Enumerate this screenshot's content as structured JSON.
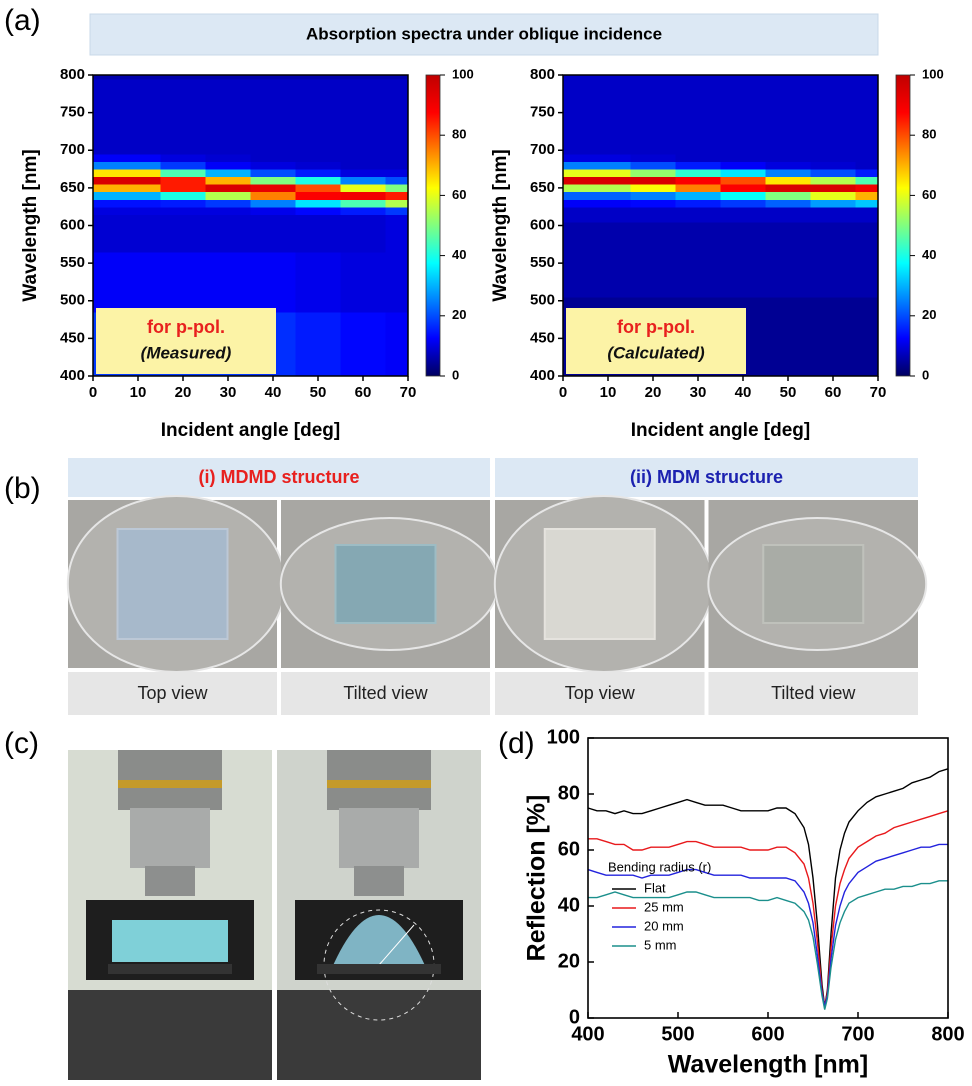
{
  "panel_labels": [
    "(a)",
    "(b)",
    "(c)",
    "(d)"
  ],
  "banner": "Absorption spectra under oblique incidence",
  "photos": {
    "groups": [
      {
        "title": "(i) MDMD structure",
        "color": "#e8201e",
        "views": [
          "Top view",
          "Tilted view"
        ]
      },
      {
        "title": "(ii) MDM structure",
        "color": "#1c22b0",
        "views": [
          "Top view",
          "Tilted view"
        ]
      }
    ]
  },
  "chart_data": [
    {
      "type": "heatmap",
      "xlabel": "Incident angle [deg]",
      "ylabel": "Wavelength [nm]",
      "annotation": [
        "for p-pol.",
        "(Measured)"
      ],
      "x": [
        0,
        10,
        20,
        30,
        40,
        50,
        60,
        70
      ],
      "y": [
        400,
        410,
        420,
        430,
        440,
        450,
        460,
        470,
        480,
        490,
        500,
        510,
        520,
        530,
        540,
        550,
        560,
        570,
        580,
        590,
        600,
        610,
        620,
        630,
        640,
        650,
        660,
        670,
        680,
        690,
        700,
        710,
        720,
        730,
        740,
        750,
        760,
        770,
        780,
        790,
        800
      ],
      "z": [
        [
          18,
          18,
          18,
          18,
          17,
          15,
          13,
          12
        ],
        [
          18,
          18,
          18,
          18,
          17,
          15,
          13,
          12
        ],
        [
          18,
          18,
          18,
          18,
          17,
          15,
          13,
          12
        ],
        [
          18,
          18,
          18,
          18,
          17,
          15,
          13,
          12
        ],
        [
          18,
          18,
          18,
          18,
          17,
          15,
          13,
          12
        ],
        [
          18,
          18,
          18,
          18,
          17,
          15,
          13,
          12
        ],
        [
          18,
          18,
          18,
          18,
          17,
          15,
          13,
          12
        ],
        [
          18,
          18,
          18,
          18,
          17,
          15,
          13,
          12
        ],
        [
          18,
          18,
          18,
          18,
          17,
          15,
          13,
          12
        ],
        [
          12,
          12,
          12,
          12,
          12,
          11,
          10,
          10
        ],
        [
          12,
          12,
          12,
          12,
          12,
          11,
          10,
          10
        ],
        [
          12,
          12,
          12,
          12,
          12,
          11,
          10,
          10
        ],
        [
          12,
          12,
          12,
          12,
          12,
          11,
          10,
          10
        ],
        [
          12,
          12,
          12,
          12,
          12,
          11,
          10,
          10
        ],
        [
          12,
          12,
          12,
          12,
          12,
          11,
          10,
          10
        ],
        [
          12,
          12,
          12,
          12,
          12,
          11,
          10,
          10
        ],
        [
          12,
          12,
          12,
          12,
          12,
          11,
          10,
          10
        ],
        [
          9,
          9,
          9,
          9,
          9,
          9,
          9,
          10
        ],
        [
          9,
          9,
          9,
          9,
          9,
          9,
          9,
          10
        ],
        [
          9,
          9,
          9,
          9,
          9,
          9,
          9,
          10
        ],
        [
          9,
          9,
          9,
          9,
          9,
          9,
          9,
          10
        ],
        [
          9,
          9,
          9,
          9,
          9,
          9,
          9,
          10
        ],
        [
          10,
          10,
          10,
          10,
          11,
          13,
          15,
          18
        ],
        [
          14,
          14,
          15,
          18,
          25,
          35,
          45,
          55
        ],
        [
          30,
          30,
          40,
          55,
          75,
          88,
          90,
          85
        ],
        [
          70,
          70,
          85,
          95,
          92,
          80,
          60,
          50
        ],
        [
          95,
          95,
          85,
          70,
          50,
          40,
          25,
          20
        ],
        [
          65,
          65,
          45,
          30,
          20,
          15,
          10,
          10
        ],
        [
          25,
          25,
          18,
          12,
          10,
          9,
          8,
          8
        ],
        [
          12,
          12,
          10,
          9,
          8,
          8,
          8,
          8
        ],
        [
          8,
          8,
          8,
          8,
          8,
          8,
          8,
          8
        ],
        [
          8,
          8,
          8,
          8,
          8,
          8,
          8,
          8
        ],
        [
          8,
          8,
          8,
          8,
          8,
          8,
          8,
          8
        ],
        [
          8,
          8,
          8,
          8,
          8,
          8,
          8,
          8
        ],
        [
          8,
          8,
          8,
          8,
          8,
          8,
          8,
          8
        ],
        [
          8,
          8,
          8,
          8,
          8,
          8,
          8,
          8
        ],
        [
          8,
          8,
          8,
          8,
          8,
          8,
          8,
          8
        ],
        [
          8,
          8,
          8,
          8,
          8,
          8,
          8,
          8
        ],
        [
          8,
          8,
          8,
          8,
          8,
          8,
          8,
          8
        ],
        [
          8,
          8,
          8,
          8,
          8,
          8,
          8,
          8
        ],
        [
          6,
          6,
          6,
          6,
          6,
          6,
          6,
          6
        ]
      ],
      "xlim": [
        0,
        70
      ],
      "xticks": [
        0,
        10,
        20,
        30,
        40,
        50,
        60,
        70
      ],
      "ylim": [
        400,
        800
      ],
      "yticks": [
        400,
        450,
        500,
        550,
        600,
        650,
        700,
        750,
        800
      ],
      "zlim": [
        0,
        100
      ],
      "zticks": [
        0,
        20,
        40,
        60,
        80,
        100
      ],
      "colormap": [
        "#000060",
        "#0000ff",
        "#0080ff",
        "#00ffff",
        "#80ff80",
        "#ffff00",
        "#ff8000",
        "#ff0000",
        "#c00000"
      ]
    },
    {
      "type": "heatmap",
      "xlabel": "Incident angle [deg]",
      "ylabel": "Wavelength [nm]",
      "annotation": [
        "for p-pol.",
        "(Calculated)"
      ],
      "x": [
        0,
        10,
        20,
        30,
        40,
        50,
        60,
        70
      ],
      "y": [
        400,
        410,
        420,
        430,
        440,
        450,
        460,
        470,
        480,
        490,
        500,
        510,
        520,
        530,
        540,
        550,
        560,
        570,
        580,
        590,
        600,
        610,
        620,
        630,
        640,
        650,
        660,
        670,
        680,
        690,
        700,
        710,
        720,
        730,
        740,
        750,
        760,
        770,
        780,
        790,
        800
      ],
      "z": [
        [
          4,
          4,
          4,
          4,
          4,
          4,
          4,
          4
        ],
        [
          4,
          4,
          4,
          4,
          4,
          4,
          4,
          4
        ],
        [
          4,
          4,
          4,
          4,
          4,
          4,
          4,
          4
        ],
        [
          4,
          4,
          4,
          4,
          4,
          4,
          4,
          4
        ],
        [
          4,
          4,
          4,
          4,
          4,
          4,
          4,
          4
        ],
        [
          4,
          4,
          4,
          4,
          4,
          4,
          4,
          4
        ],
        [
          4,
          4,
          4,
          4,
          4,
          4,
          4,
          4
        ],
        [
          4,
          4,
          4,
          4,
          4,
          4,
          4,
          4
        ],
        [
          4,
          4,
          4,
          4,
          4,
          4,
          4,
          4
        ],
        [
          4,
          4,
          4,
          4,
          4,
          4,
          4,
          4
        ],
        [
          4,
          4,
          4,
          4,
          4,
          4,
          4,
          4
        ],
        [
          6,
          6,
          6,
          6,
          6,
          6,
          6,
          6
        ],
        [
          6,
          6,
          6,
          6,
          6,
          6,
          6,
          6
        ],
        [
          6,
          6,
          6,
          6,
          6,
          6,
          6,
          6
        ],
        [
          6,
          6,
          6,
          6,
          6,
          6,
          6,
          6
        ],
        [
          6,
          6,
          6,
          6,
          6,
          6,
          6,
          6
        ],
        [
          6,
          6,
          6,
          6,
          6,
          6,
          6,
          6
        ],
        [
          6,
          6,
          6,
          6,
          6,
          6,
          6,
          6
        ],
        [
          6,
          6,
          6,
          6,
          6,
          6,
          6,
          6
        ],
        [
          6,
          6,
          6,
          6,
          6,
          6,
          6,
          6
        ],
        [
          6,
          6,
          6,
          6,
          6,
          6,
          6,
          6
        ],
        [
          8,
          8,
          8,
          8,
          8,
          8,
          8,
          8
        ],
        [
          8,
          8,
          8,
          8,
          8,
          8,
          8,
          8
        ],
        [
          12,
          12,
          13,
          15,
          18,
          22,
          28,
          32
        ],
        [
          22,
          22,
          25,
          30,
          38,
          50,
          60,
          70
        ],
        [
          55,
          55,
          62,
          75,
          88,
          95,
          95,
          90
        ],
        [
          95,
          95,
          95,
          88,
          80,
          65,
          55,
          45
        ],
        [
          60,
          60,
          52,
          42,
          35,
          25,
          20,
          15
        ],
        [
          25,
          25,
          20,
          15,
          12,
          10,
          9,
          8
        ],
        [
          10,
          10,
          9,
          8,
          8,
          8,
          8,
          8
        ],
        [
          8,
          8,
          8,
          8,
          8,
          8,
          8,
          8
        ],
        [
          8,
          8,
          8,
          8,
          8,
          8,
          8,
          8
        ],
        [
          8,
          8,
          8,
          8,
          8,
          8,
          8,
          8
        ],
        [
          8,
          8,
          8,
          8,
          8,
          8,
          8,
          8
        ],
        [
          8,
          8,
          8,
          8,
          8,
          8,
          8,
          8
        ],
        [
          8,
          8,
          8,
          8,
          8,
          8,
          8,
          8
        ],
        [
          8,
          8,
          8,
          8,
          8,
          8,
          8,
          8
        ],
        [
          8,
          8,
          8,
          8,
          8,
          8,
          8,
          8
        ],
        [
          8,
          8,
          8,
          8,
          8,
          8,
          8,
          8
        ],
        [
          8,
          8,
          8,
          8,
          8,
          8,
          8,
          8
        ],
        [
          8,
          8,
          8,
          8,
          8,
          8,
          8,
          8
        ]
      ],
      "xlim": [
        0,
        70
      ],
      "xticks": [
        0,
        10,
        20,
        30,
        40,
        50,
        60,
        70
      ],
      "ylim": [
        400,
        800
      ],
      "yticks": [
        400,
        450,
        500,
        550,
        600,
        650,
        700,
        750,
        800
      ],
      "zlim": [
        0,
        100
      ],
      "zticks": [
        0,
        20,
        40,
        60,
        80,
        100
      ],
      "colormap": [
        "#000060",
        "#0000ff",
        "#0080ff",
        "#00ffff",
        "#80ff80",
        "#ffff00",
        "#ff8000",
        "#ff0000",
        "#c00000"
      ]
    },
    {
      "type": "line",
      "xlabel": "Wavelength [nm]",
      "ylabel": "Reflection [%]",
      "legend_title": "Bending radius (r)",
      "legend": "lower left",
      "x": [
        400,
        410,
        420,
        430,
        440,
        450,
        460,
        470,
        480,
        490,
        500,
        510,
        520,
        530,
        540,
        550,
        560,
        570,
        580,
        590,
        600,
        610,
        620,
        630,
        640,
        645,
        650,
        655,
        660,
        663,
        666,
        670,
        675,
        680,
        685,
        690,
        700,
        710,
        720,
        730,
        740,
        750,
        760,
        770,
        780,
        790,
        800
      ],
      "series": [
        {
          "name": "Flat",
          "color": "#000000",
          "values": [
            75,
            74,
            74,
            73,
            74,
            73,
            73,
            74,
            75,
            76,
            77,
            78,
            77,
            76,
            76,
            76,
            75,
            74,
            74,
            74,
            74,
            75,
            75,
            73,
            68,
            62,
            50,
            33,
            12,
            4,
            10,
            30,
            50,
            60,
            66,
            70,
            74,
            77,
            79,
            80,
            81,
            82,
            84,
            85,
            86,
            88,
            89
          ]
        },
        {
          "name": "25 mm",
          "color": "#e8191c",
          "values": [
            64,
            64,
            63,
            62,
            62,
            60,
            60,
            61,
            61,
            61,
            62,
            63,
            63,
            62,
            61,
            61,
            61,
            61,
            60,
            60,
            60,
            61,
            61,
            59,
            55,
            50,
            41,
            27,
            10,
            4,
            9,
            25,
            40,
            48,
            53,
            57,
            61,
            63,
            65,
            66,
            68,
            69,
            70,
            71,
            72,
            73,
            74
          ]
        },
        {
          "name": "20 mm",
          "color": "#2323dd",
          "values": [
            53,
            52,
            51,
            51,
            51,
            51,
            50,
            51,
            51,
            51,
            52,
            53,
            53,
            52,
            51,
            51,
            51,
            51,
            50,
            50,
            50,
            50,
            50,
            49,
            45,
            41,
            34,
            22,
            9,
            4,
            8,
            21,
            33,
            40,
            45,
            48,
            52,
            54,
            56,
            57,
            58,
            59,
            60,
            61,
            61,
            62,
            62
          ]
        },
        {
          "name": "5 mm",
          "color": "#1b8f8c",
          "values": [
            43,
            43,
            44,
            45,
            44,
            43,
            43,
            43,
            43,
            43,
            44,
            45,
            45,
            44,
            43,
            43,
            43,
            43,
            43,
            42,
            42,
            43,
            42,
            41,
            38,
            35,
            29,
            19,
            8,
            3,
            7,
            18,
            28,
            34,
            38,
            41,
            43,
            44,
            45,
            46,
            46,
            47,
            47,
            48,
            48,
            49,
            49
          ]
        }
      ],
      "xlim": [
        400,
        800
      ],
      "xticks": [
        400,
        500,
        600,
        700,
        800
      ],
      "ylim": [
        0,
        100
      ],
      "yticks": [
        0,
        20,
        40,
        60,
        80,
        100
      ]
    }
  ]
}
